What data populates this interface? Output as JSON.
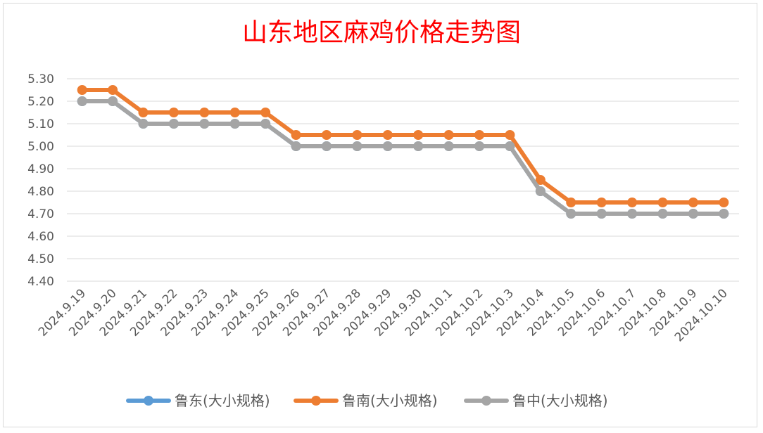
{
  "chart_data": {
    "type": "line",
    "title": "山东地区麻鸡价格走势图",
    "xlabel": "",
    "ylabel": "",
    "ylim": [
      4.4,
      5.3
    ],
    "yticks": [
      "5.30",
      "5.20",
      "5.10",
      "5.00",
      "4.90",
      "4.80",
      "4.70",
      "4.60",
      "4.50",
      "4.40"
    ],
    "grid": true,
    "legend_position": "bottom",
    "categories": [
      "2024.9.19",
      "2024.9.20",
      "2024.9.21",
      "2024.9.22",
      "2024.9.23",
      "2024.9.24",
      "2024.9.25",
      "2024.9.26",
      "2024.9.27",
      "2024.9.28",
      "2024.9.29",
      "2024.9.30",
      "2024.10.1",
      "2024.10.2",
      "2024.10.3",
      "2024.10.4",
      "2024.10.5",
      "2024.10.6",
      "2024.10.7",
      "2024.10.8",
      "2024.10.9",
      "2024.10.10"
    ],
    "series": [
      {
        "name": "鲁东(大小规格)",
        "color": "#5b9bd5",
        "values": [
          5.2,
          5.2,
          5.1,
          5.1,
          5.1,
          5.1,
          5.1,
          5.0,
          5.0,
          5.0,
          5.0,
          5.0,
          5.0,
          5.0,
          5.0,
          4.8,
          4.7,
          4.7,
          4.7,
          4.7,
          4.7,
          4.7
        ]
      },
      {
        "name": "鲁南(大小规格)",
        "color": "#ed7d31",
        "values": [
          5.25,
          5.25,
          5.15,
          5.15,
          5.15,
          5.15,
          5.15,
          5.05,
          5.05,
          5.05,
          5.05,
          5.05,
          5.05,
          5.05,
          5.05,
          4.85,
          4.75,
          4.75,
          4.75,
          4.75,
          4.75,
          4.75
        ]
      },
      {
        "name": "鲁中(大小规格)",
        "color": "#a5a5a5",
        "values": [
          5.2,
          5.2,
          5.1,
          5.1,
          5.1,
          5.1,
          5.1,
          5.0,
          5.0,
          5.0,
          5.0,
          5.0,
          5.0,
          5.0,
          5.0,
          4.8,
          4.7,
          4.7,
          4.7,
          4.7,
          4.7,
          4.7
        ]
      }
    ]
  }
}
